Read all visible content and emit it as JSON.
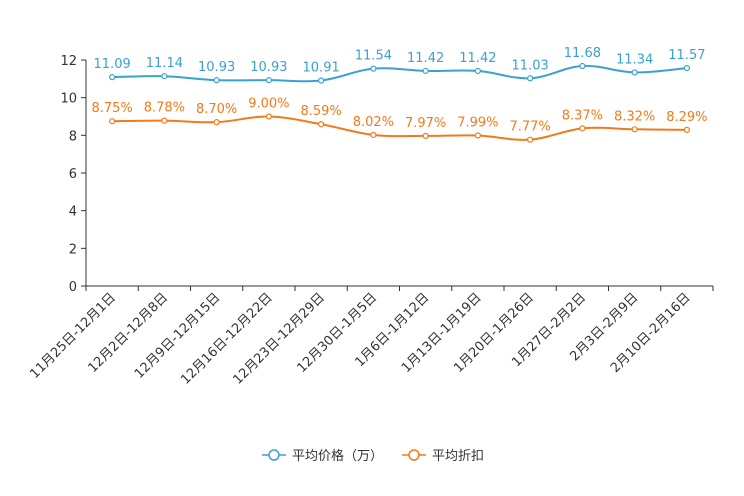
{
  "chart_data": {
    "type": "line",
    "title": "",
    "xlabel": "",
    "ylabel": "",
    "ylim": [
      0,
      12
    ],
    "yticks": [
      0,
      2,
      4,
      6,
      8,
      10,
      12
    ],
    "categories": [
      "11月25日-12月1日",
      "12月2日-12月8日",
      "12月9日-12月15日",
      "12月16日-12月22日",
      "12月23日-12月29日",
      "12月30日-1月5日",
      "1月6日-1月12日",
      "1月13日-1月19日",
      "1月20日-1月26日",
      "1月27日-2月2日",
      "2月3日-2月9日",
      "2月10日-2月16日"
    ],
    "series": [
      {
        "name": "平均价格（万）",
        "color": "#3ba1d0",
        "values": [
          11.09,
          11.14,
          10.93,
          10.93,
          10.91,
          11.54,
          11.42,
          11.42,
          11.03,
          11.68,
          11.34,
          11.57
        ],
        "labels": [
          "11.09",
          "11.14",
          "10.93",
          "10.93",
          "10.91",
          "11.54",
          "11.42",
          "11.42",
          "11.03",
          "11.68",
          "11.34",
          "11.57"
        ]
      },
      {
        "name": "平均折扣",
        "color": "#f07b1c",
        "values": [
          8.75,
          8.78,
          8.7,
          9.0,
          8.59,
          8.02,
          7.97,
          7.99,
          7.77,
          8.37,
          8.32,
          8.29
        ],
        "labels": [
          "8.75%",
          "8.78%",
          "8.70%",
          "9.00%",
          "8.59%",
          "8.02%",
          "7.97%",
          "7.99%",
          "7.77%",
          "8.37%",
          "8.32%",
          "8.29%"
        ]
      }
    ],
    "legend": "bottom-center",
    "grid": false
  }
}
